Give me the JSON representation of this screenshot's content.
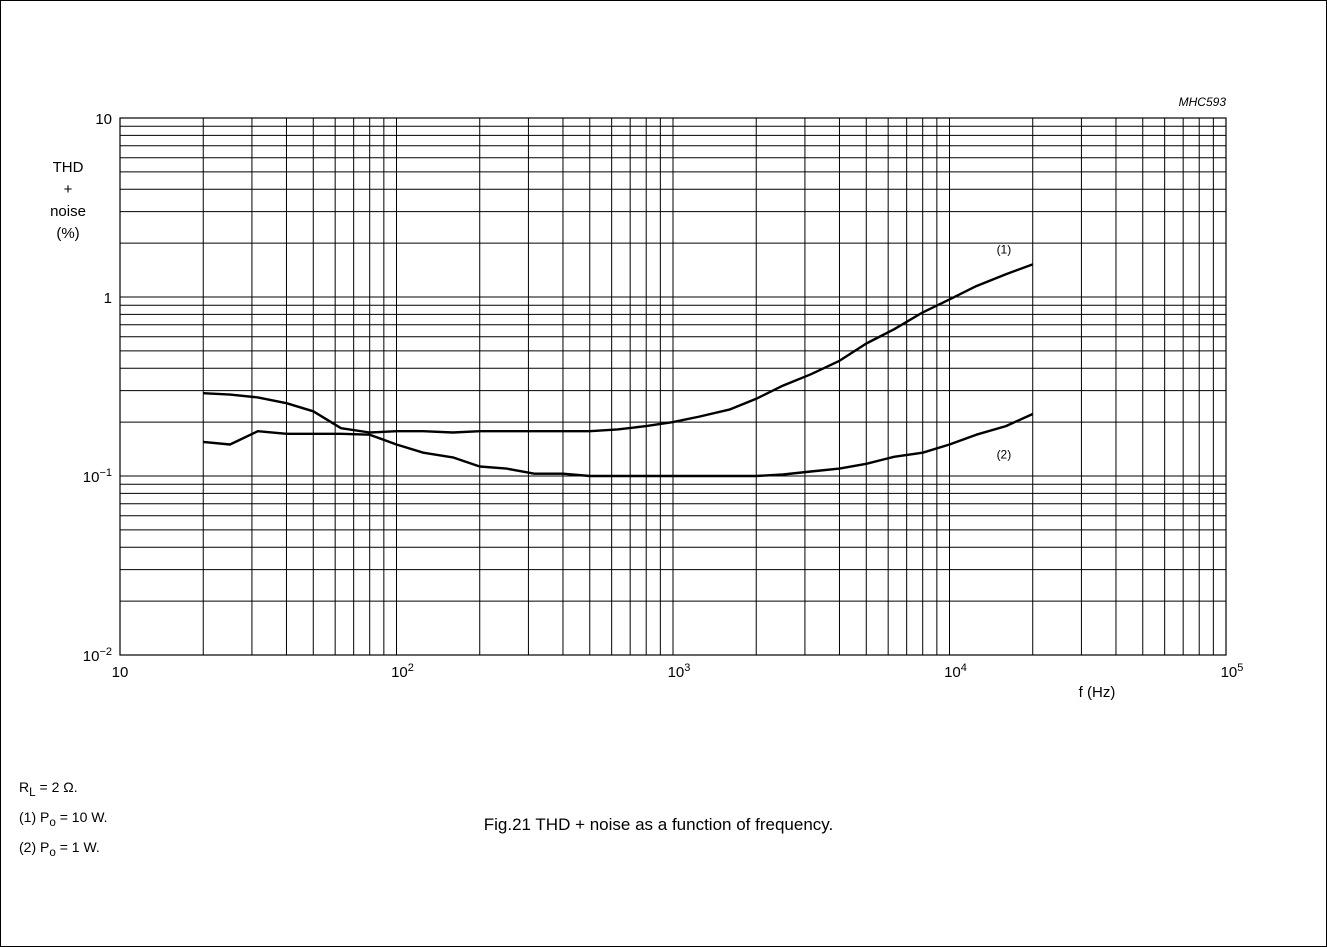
{
  "chart_data": {
    "type": "line",
    "code": "MHC593",
    "ylabel": [
      "THD",
      "+",
      "noise",
      "(%)"
    ],
    "xlabel": "f (Hz)",
    "x_scale": "log",
    "y_scale": "log",
    "xlim": [
      10,
      100000
    ],
    "ylim": [
      0.01,
      10
    ],
    "grid": true,
    "x_tick_labels": [
      {
        "value": 10,
        "base": "10",
        "exp": ""
      },
      {
        "value": 100,
        "base": "10",
        "exp": "2"
      },
      {
        "value": 1000,
        "base": "10",
        "exp": "3"
      },
      {
        "value": 10000,
        "base": "10",
        "exp": "4"
      },
      {
        "value": 100000,
        "base": "10",
        "exp": "5"
      }
    ],
    "y_tick_labels": [
      {
        "value": 10,
        "base": "10",
        "exp": ""
      },
      {
        "value": 1,
        "base": "1",
        "exp": ""
      },
      {
        "value": 0.1,
        "base": "10",
        "exp": "−1"
      },
      {
        "value": 0.01,
        "base": "10",
        "exp": "−2"
      }
    ],
    "series": [
      {
        "name": "(1)",
        "label_at": [
          14000,
          1.75
        ],
        "points": [
          [
            20,
            0.29
          ],
          [
            25,
            0.285
          ],
          [
            31.5,
            0.275
          ],
          [
            40,
            0.255
          ],
          [
            50,
            0.23
          ],
          [
            63,
            0.185
          ],
          [
            80,
            0.175
          ],
          [
            100,
            0.178
          ],
          [
            125,
            0.178
          ],
          [
            160,
            0.175
          ],
          [
            200,
            0.178
          ],
          [
            250,
            0.178
          ],
          [
            315,
            0.178
          ],
          [
            400,
            0.178
          ],
          [
            500,
            0.178
          ],
          [
            630,
            0.182
          ],
          [
            800,
            0.19
          ],
          [
            1000,
            0.2
          ],
          [
            1250,
            0.215
          ],
          [
            1600,
            0.235
          ],
          [
            2000,
            0.27
          ],
          [
            2500,
            0.32
          ],
          [
            3150,
            0.37
          ],
          [
            4000,
            0.44
          ],
          [
            5000,
            0.55
          ],
          [
            6300,
            0.66
          ],
          [
            8000,
            0.82
          ],
          [
            10000,
            0.97
          ],
          [
            12500,
            1.15
          ],
          [
            16000,
            1.34
          ],
          [
            20000,
            1.52
          ]
        ]
      },
      {
        "name": "(2)",
        "label_at": [
          14000,
          0.125
        ],
        "points": [
          [
            20,
            0.155
          ],
          [
            25,
            0.15
          ],
          [
            31.5,
            0.178
          ],
          [
            40,
            0.172
          ],
          [
            50,
            0.172
          ],
          [
            63,
            0.172
          ],
          [
            80,
            0.17
          ],
          [
            100,
            0.15
          ],
          [
            125,
            0.135
          ],
          [
            160,
            0.127
          ],
          [
            200,
            0.113
          ],
          [
            250,
            0.11
          ],
          [
            315,
            0.103
          ],
          [
            400,
            0.103
          ],
          [
            500,
            0.1
          ],
          [
            630,
            0.1
          ],
          [
            800,
            0.1
          ],
          [
            1000,
            0.1
          ],
          [
            1250,
            0.1
          ],
          [
            1600,
            0.1
          ],
          [
            2000,
            0.1
          ],
          [
            2500,
            0.102
          ],
          [
            3150,
            0.106
          ],
          [
            4000,
            0.11
          ],
          [
            5000,
            0.117
          ],
          [
            6300,
            0.128
          ],
          [
            8000,
            0.135
          ],
          [
            10000,
            0.15
          ],
          [
            12500,
            0.17
          ],
          [
            16000,
            0.19
          ],
          [
            20000,
            0.222
          ]
        ]
      }
    ]
  },
  "notes": {
    "rl": {
      "pre": "R",
      "sub": "L",
      "post": " = 2 Ω."
    },
    "n1": {
      "pre": "(1)  P",
      "sub": "o",
      "post": " = 10 W."
    },
    "n2": {
      "pre": "(2)  P",
      "sub": "o",
      "post": " = 1 W."
    }
  },
  "caption": "Fig.21  THD + noise as a function of frequency."
}
